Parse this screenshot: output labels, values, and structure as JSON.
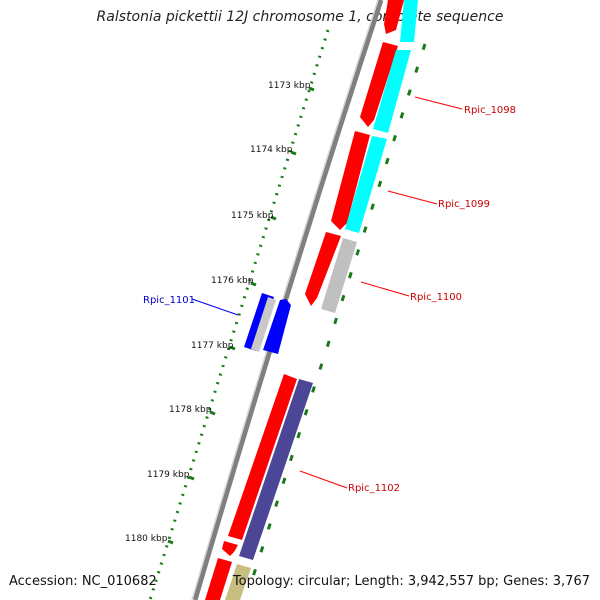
{
  "title": "Ralstonia pickettii 12J chromosome 1, complete sequence",
  "accession": "Accession: NC_010682",
  "summary": "Topology: circular; Length: 3,942,557 bp; Genes: 3,767",
  "colors": {
    "backbone": "#808080",
    "forward_gene": "#ff0000",
    "cyan_gene": "#00ffff",
    "gray_gene": "#c0c0c0",
    "blue_gene": "#0000ff",
    "purple_gene": "#4b4696",
    "olive_gene": "#c8be82",
    "tick": "#1a7a1a",
    "label_red": "#cc0000",
    "label_blue": "#0000cc"
  },
  "ticks": [
    {
      "label": "1173 kbp"
    },
    {
      "label": "1174 kbp"
    },
    {
      "label": "1175 kbp"
    },
    {
      "label": "1176 kbp"
    },
    {
      "label": "1177 kbp"
    },
    {
      "label": "1178 kbp"
    },
    {
      "label": "1179 kbp"
    },
    {
      "label": "1180 kbp"
    }
  ],
  "gene_labels": [
    {
      "name": "Rpic_1098",
      "color": "#cc0000"
    },
    {
      "name": "Rpic_1099",
      "color": "#cc0000"
    },
    {
      "name": "Rpic_1100",
      "color": "#cc0000"
    },
    {
      "name": "Rpic_1101",
      "color": "#0000cc"
    },
    {
      "name": "Rpic_1102",
      "color": "#cc0000"
    }
  ]
}
